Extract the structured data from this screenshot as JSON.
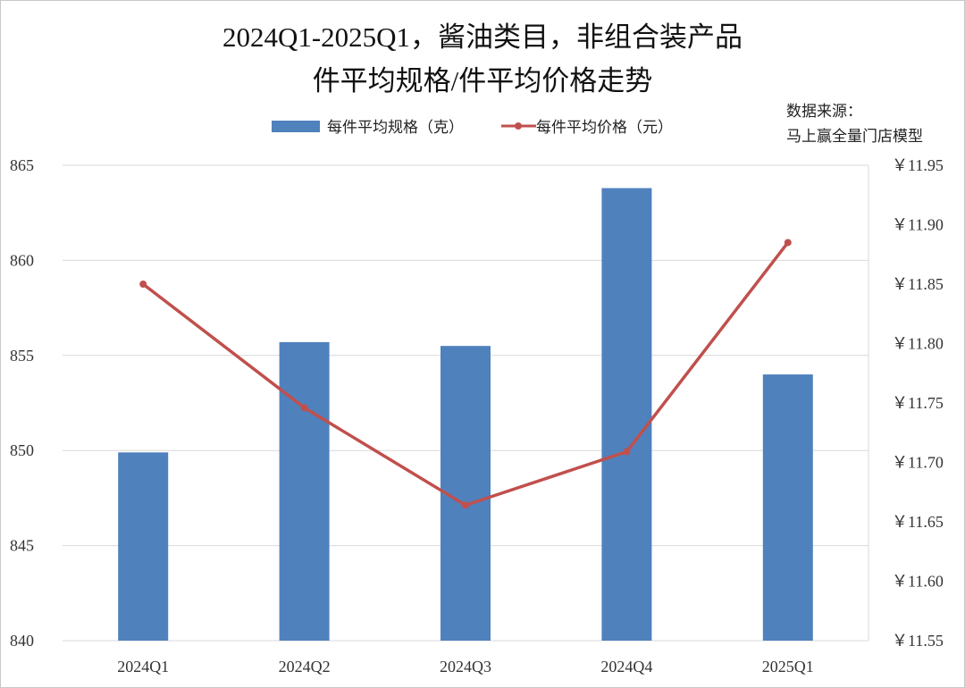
{
  "title_lines": [
    "2024Q1-2025Q1，酱油类目，非组合装产品",
    "件平均规格/件平均价格走势"
  ],
  "source": [
    "数据来源：",
    "马上赢全量门店模型"
  ],
  "colors": {
    "bar": "#4f81bd",
    "line": "#c0504d",
    "grid": "#d9d9d9"
  },
  "chart_data": {
    "type": "bar+line",
    "categories": [
      "2024Q1",
      "2024Q2",
      "2024Q3",
      "2024Q4",
      "2025Q1"
    ],
    "series": [
      {
        "name": "每件平均规格（克）",
        "type": "bar",
        "axis": "left",
        "values": [
          849.9,
          855.7,
          855.5,
          863.8,
          854.0
        ]
      },
      {
        "name": "每件平均价格（元）",
        "type": "line",
        "axis": "right",
        "values": [
          11.85,
          11.746,
          11.664,
          11.709,
          11.885
        ]
      }
    ],
    "y_left": {
      "lim": [
        840,
        865
      ],
      "ticks": [
        840,
        845,
        850,
        855,
        860,
        865
      ],
      "tick_labels": [
        "840",
        "845",
        "850",
        "855",
        "860",
        "865"
      ]
    },
    "y_right": {
      "lim": [
        11.55,
        11.95
      ],
      "ticks": [
        11.55,
        11.6,
        11.65,
        11.7,
        11.75,
        11.8,
        11.85,
        11.9,
        11.95
      ],
      "tick_labels": [
        "￥11.55",
        "￥11.60",
        "￥11.65",
        "￥11.70",
        "￥11.75",
        "￥11.80",
        "￥11.85",
        "￥11.90",
        "￥11.95"
      ]
    },
    "grid": true,
    "legend_position": "top"
  }
}
